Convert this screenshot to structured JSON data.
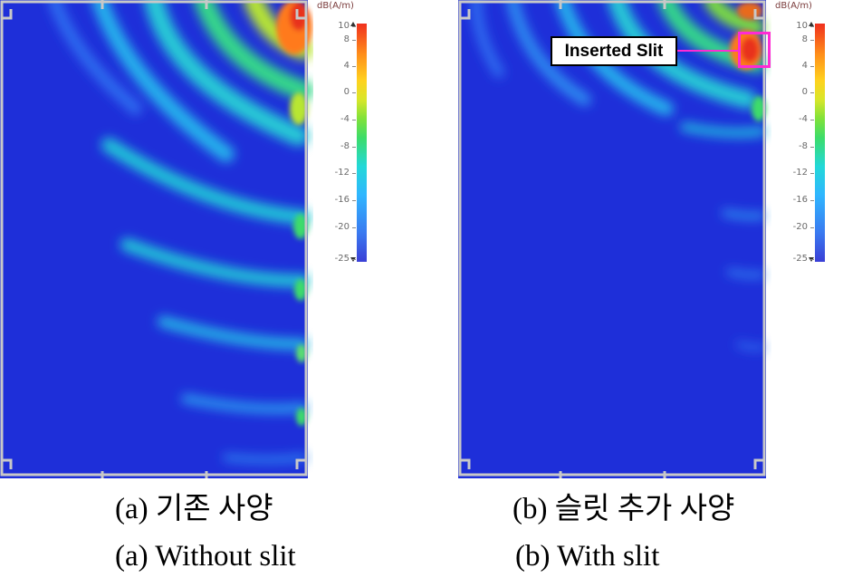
{
  "colorbar": {
    "unit": "dB(A/m)",
    "ticks": [
      "10",
      "8",
      "4",
      "0",
      "-4",
      "-8",
      "-12",
      "-16",
      "-20",
      "-25"
    ],
    "colors": [
      "#3a3fd6",
      "#22d8d8",
      "#3cdc6a",
      "#ffd21e",
      "#f0301e"
    ]
  },
  "annotation": {
    "label": "Inserted Slit",
    "highlight_color": "#ff2ad4"
  },
  "captions": {
    "a_korean": "(a) 기존 사양",
    "a_english": "(a) Without slit",
    "b_korean": "(b) 슬릿 추가 사양",
    "b_english": "(b) With slit"
  },
  "field_colors": {
    "background": "#1e2fd9",
    "frame": "#c8c8c8"
  }
}
